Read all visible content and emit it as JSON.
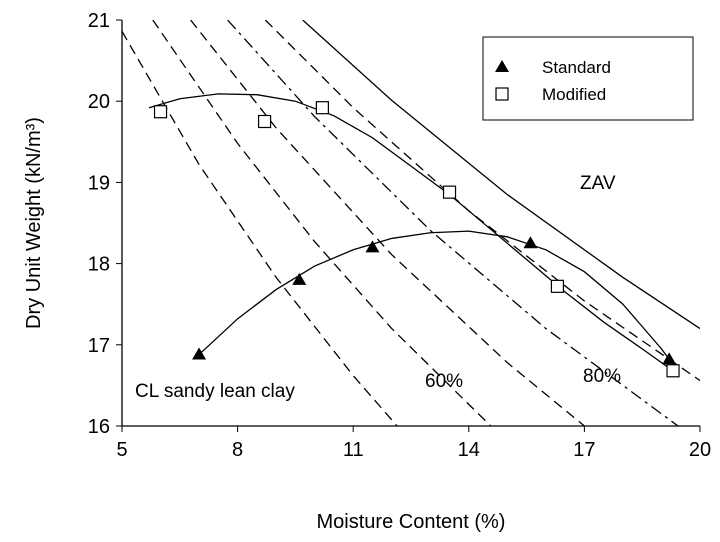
{
  "chart_data": {
    "type": "scatter",
    "xlabel": "Moisture Content (%)",
    "ylabel": "Dry Unit Weight (kN/m³)",
    "xlim": [
      5,
      20
    ],
    "xticks": [
      5,
      8,
      11,
      14,
      17,
      20
    ],
    "ylim": [
      16,
      21
    ],
    "yticks": [
      16,
      17,
      18,
      19,
      20,
      21
    ],
    "legend": "upper right",
    "series": [
      {
        "name": "Standard",
        "marker": "triangle",
        "color": "#000000",
        "x": [
          7.0,
          9.6,
          11.5,
          15.6,
          19.2
        ],
        "values": [
          16.88,
          17.8,
          18.2,
          18.25,
          16.82
        ]
      },
      {
        "name": "Modified",
        "marker": "square",
        "color": "#000000",
        "x": [
          6.0,
          8.7,
          10.2,
          13.5,
          16.3,
          19.3
        ],
        "values": [
          19.87,
          19.75,
          19.92,
          18.88,
          17.72,
          16.68
        ]
      }
    ],
    "curves": [
      {
        "style": "solid",
        "x": [
          7.0,
          8,
          9,
          10,
          11,
          12,
          13,
          14,
          15,
          16,
          17,
          18,
          19,
          19.2
        ],
        "values": [
          16.88,
          17.32,
          17.68,
          17.97,
          18.17,
          18.31,
          18.38,
          18.4,
          18.33,
          18.17,
          17.9,
          17.5,
          16.95,
          16.82
        ]
      },
      {
        "style": "solid",
        "x": [
          5.7,
          6.5,
          7.5,
          8.5,
          9.5,
          10.5,
          11.5,
          12.5,
          13.5,
          14.5,
          15.5,
          16.5,
          17.5,
          18.5,
          19.3
        ],
        "values": [
          19.92,
          20.03,
          20.09,
          20.08,
          20.0,
          19.82,
          19.55,
          19.2,
          18.85,
          18.45,
          18.05,
          17.65,
          17.28,
          16.95,
          16.68
        ]
      },
      {
        "style": "dashed",
        "x": [
          5,
          7,
          9,
          11,
          12.14
        ],
        "values": [
          20.86,
          19.22,
          17.83,
          16.62,
          16.0
        ]
      },
      {
        "style": "dashed",
        "x": [
          5.8,
          8,
          10,
          12,
          14.57
        ],
        "values": [
          21.0,
          19.48,
          18.27,
          17.2,
          16.0
        ]
      },
      {
        "style": "dashed",
        "x": [
          6.78,
          9,
          12,
          15,
          17.0
        ],
        "values": [
          21.0,
          19.67,
          18.11,
          16.78,
          16.0
        ]
      },
      {
        "style": "dashdot",
        "x": [
          7.74,
          10,
          13,
          16,
          19.43
        ],
        "values": [
          21.0,
          19.81,
          18.41,
          17.2,
          16.0
        ]
      },
      {
        "style": "dashed",
        "x": [
          8.72,
          11,
          14,
          17,
          20
        ],
        "values": [
          21.0,
          19.92,
          18.65,
          17.54,
          16.56
        ]
      },
      {
        "style": "solid",
        "x": [
          9.69,
          12,
          15,
          18,
          20
        ],
        "values": [
          21.0,
          20.01,
          18.85,
          17.83,
          17.2
        ]
      }
    ],
    "annotations": [
      "ZAV",
      "60%",
      "80%",
      "CL sandy lean clay"
    ]
  }
}
